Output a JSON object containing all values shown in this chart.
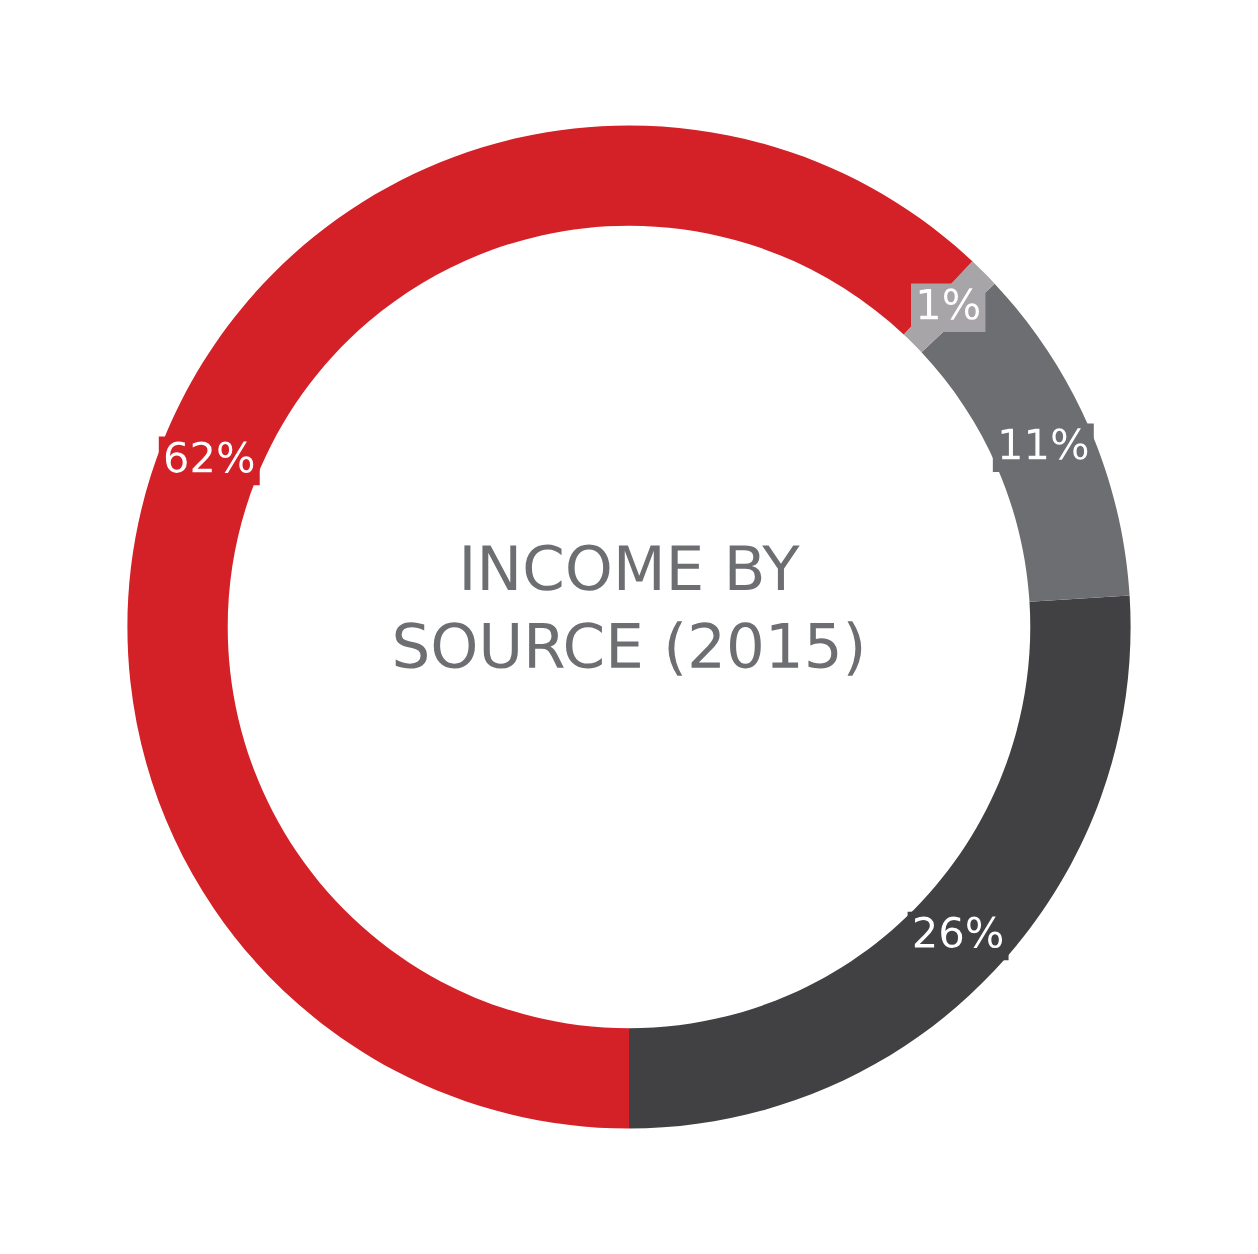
{
  "chart_data": {
    "type": "donut",
    "title": "INCOME BY\nSOURCE (2015)",
    "categories": [
      null,
      null,
      null,
      null
    ],
    "values": [
      26,
      11,
      1,
      62
    ],
    "value_labels": [
      "26%",
      "11%",
      "1%",
      "62%"
    ],
    "colors": [
      "#414042",
      "#6d6e71",
      "#a7a5a8",
      "#d42027"
    ]
  }
}
